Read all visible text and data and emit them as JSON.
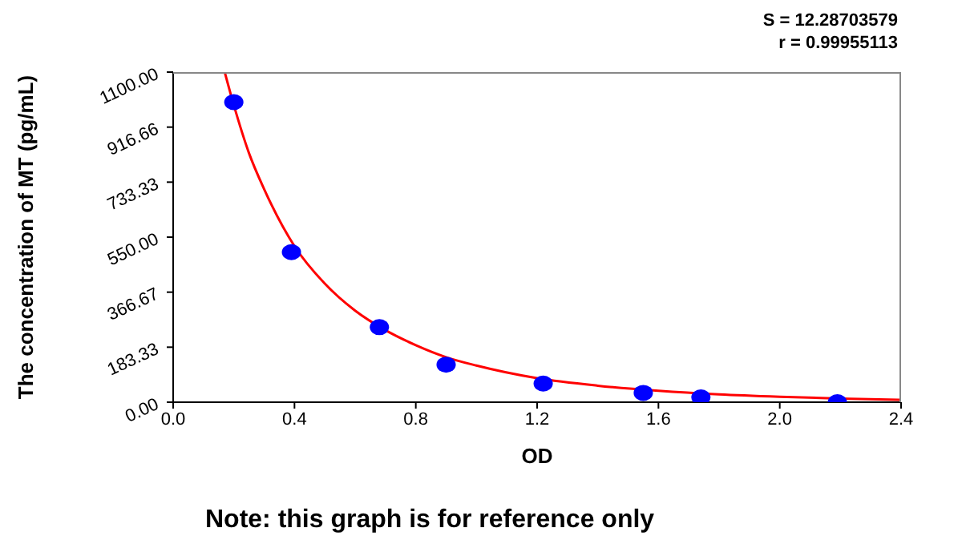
{
  "chart_data": {
    "type": "scatter",
    "xlabel": "OD",
    "ylabel": "The concentration of MT (pg/mL)",
    "annotations": [
      "S = 12.28703579",
      "r = 0.99955113",
      "Note: this graph is for reference only"
    ],
    "xlim": [
      0,
      2.4
    ],
    "ylim": [
      0,
      1100
    ],
    "xticks": [
      {
        "value": 0,
        "label": "0.0"
      },
      {
        "value": 0.4,
        "label": "0.4"
      },
      {
        "value": 0.8,
        "label": "0.8"
      },
      {
        "value": 1.2,
        "label": "1.2"
      },
      {
        "value": 1.6,
        "label": "1.6"
      },
      {
        "value": 2.0,
        "label": "2.0"
      },
      {
        "value": 2.4,
        "label": "2.4"
      }
    ],
    "yticks": [
      {
        "value": 0,
        "label": "0.00"
      },
      {
        "value": 183.33,
        "label": "183.33"
      },
      {
        "value": 366.67,
        "label": "366.67"
      },
      {
        "value": 550,
        "label": "550.00"
      },
      {
        "value": 733.33,
        "label": "733.33"
      },
      {
        "value": 916.66,
        "label": "916.66"
      },
      {
        "value": 1100,
        "label": "1100.00"
      }
    ],
    "marker": "circle",
    "series": [
      {
        "color": "#0000ff",
        "x": [
          0.2,
          0.39,
          0.68,
          0.9,
          1.22,
          1.55,
          1.74,
          2.19
        ],
        "values": [
          1000,
          500,
          250,
          125,
          62,
          31,
          16,
          0
        ]
      },
      {
        "type": "line",
        "color": "#ff0000",
        "line_style": "solid",
        "marker": "none",
        "x": [
          0.17,
          0.2,
          0.25,
          0.3,
          0.4,
          0.5,
          0.6,
          0.7,
          0.8,
          0.9,
          1.0,
          1.2,
          1.4,
          1.6,
          1.8,
          2.0,
          2.2,
          2.4
        ],
        "values": [
          1100,
          990,
          830,
          710,
          520,
          395,
          305,
          240,
          190,
          150,
          122,
          80,
          55,
          38,
          26,
          18,
          12,
          8
        ]
      }
    ]
  }
}
